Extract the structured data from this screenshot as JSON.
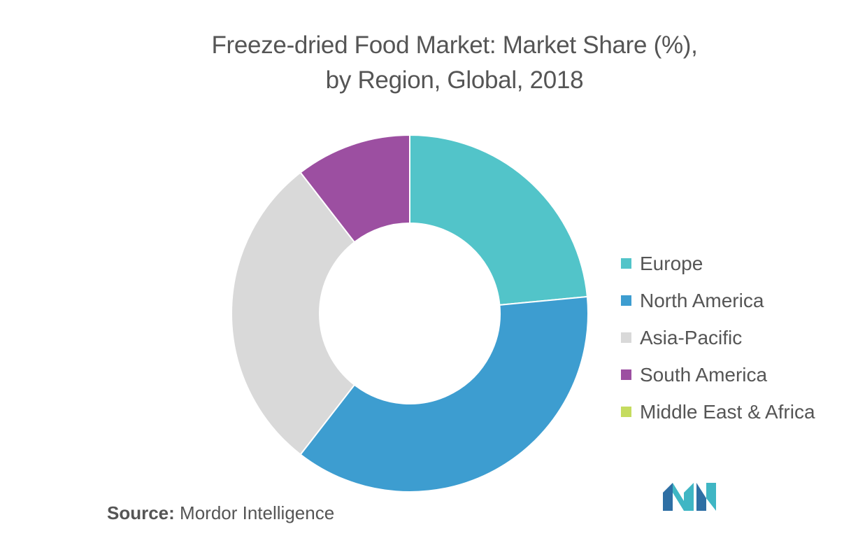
{
  "title_line1": "Freeze-dried Food Market: Market Share (%),",
  "title_line2": "by Region, Global, 2018",
  "source_label": "Source:",
  "source_text": "Mordor Intelligence",
  "logo_icon": "mordor-intelligence-logo",
  "chart_data": {
    "type": "pie",
    "variant": "donut",
    "title": "Freeze-dried Food Market: Market Share (%), by Region, Global, 2018",
    "legend_position": "right",
    "series": [
      {
        "name": "Europe",
        "value": 23.5,
        "color": "#52c4c9"
      },
      {
        "name": "North America",
        "value": 37,
        "color": "#3d9dd0"
      },
      {
        "name": "Asia-Pacific",
        "value": 29,
        "color": "#d9d9d9"
      },
      {
        "name": "South America",
        "value": 10.5,
        "color": "#9c4fa1"
      },
      {
        "name": "Middle East & Africa",
        "value": 0,
        "color": "#c5dc5f"
      }
    ]
  }
}
